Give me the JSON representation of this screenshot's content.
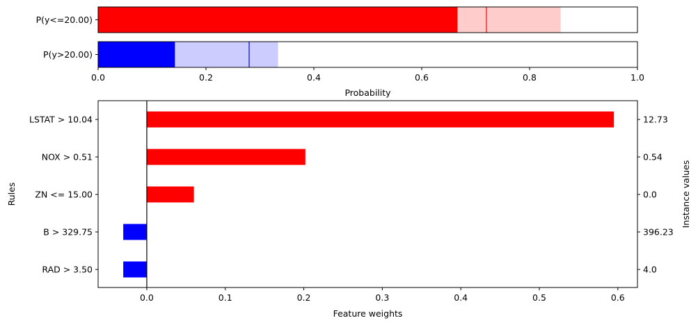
{
  "chart_data": [
    {
      "type": "bar",
      "orientation": "horizontal",
      "xlabel": "Probability",
      "xlim": [
        0,
        1
      ],
      "xticks": [
        "0.0",
        "0.2",
        "0.4",
        "0.6",
        "0.8",
        "1.0"
      ],
      "xtick_values": [
        0,
        0.2,
        0.4,
        0.6,
        0.8,
        1.0
      ],
      "rows": [
        {
          "label": "P(y<=20.00)",
          "value": 0.667,
          "interval": [
            0.667,
            0.857
          ],
          "marker": 0.72,
          "color": "#ff0000",
          "light_color": "#ffcccc"
        },
        {
          "label": "P(y>20.00)",
          "value": 0.143,
          "interval": [
            0.143,
            0.333
          ],
          "marker": 0.28,
          "color": "#0000ff",
          "light_color": "#ccccff"
        }
      ]
    },
    {
      "type": "bar",
      "orientation": "horizontal",
      "xlabel": "Feature weights",
      "ylabel": "Rules",
      "y2label": "Instance values",
      "xlim": [
        -0.062,
        0.625
      ],
      "xticks": [
        "0.0",
        "0.1",
        "0.2",
        "0.3",
        "0.4",
        "0.5",
        "0.6"
      ],
      "xtick_values": [
        0,
        0.1,
        0.2,
        0.3,
        0.4,
        0.5,
        0.6
      ],
      "rules": [
        "LSTAT > 10.04",
        "NOX > 0.51",
        "ZN <= 15.00",
        "B > 329.75",
        "RAD > 3.50"
      ],
      "values": [
        0.595,
        0.202,
        0.06,
        -0.03,
        -0.03
      ],
      "instance_values": [
        "12.73",
        "0.54",
        "0.0",
        "396.23",
        "4.0"
      ],
      "positive_color": "#ff0000",
      "negative_color": "#0000ff"
    }
  ]
}
